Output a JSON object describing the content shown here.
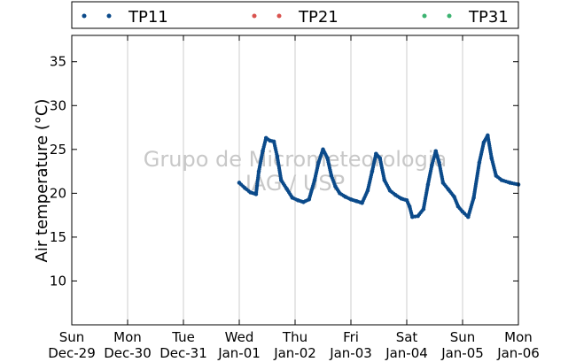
{
  "chart_data": {
    "type": "scatter",
    "title": "",
    "xlabel": "",
    "ylabel": "Air temperature (°C)",
    "ylim": [
      5,
      38
    ],
    "yticks": [
      10,
      15,
      20,
      25,
      30,
      35
    ],
    "x_days": [
      "Dec-29",
      "Dec-30",
      "Dec-31",
      "Jan-01",
      "Jan-02",
      "Jan-03",
      "Jan-04",
      "Jan-05",
      "Jan-06"
    ],
    "x_weekdays": [
      "Sun",
      "Mon",
      "Tue",
      "Wed",
      "Thu",
      "Fri",
      "Sat",
      "Sun",
      "Mon"
    ],
    "grid": "vertical",
    "legend_position": "top",
    "watermark": [
      "Grupo de Micrometeorologia",
      "IAG / USP"
    ],
    "series": [
      {
        "name": "TP11",
        "color": "#0b4a8a",
        "points": [
          [
            "Jan-01",
            0.0,
            21.2
          ],
          [
            "Jan-01",
            0.1,
            20.6
          ],
          [
            "Jan-01",
            0.2,
            20.1
          ],
          [
            "Jan-01",
            0.3,
            19.9
          ],
          [
            "Jan-01",
            0.35,
            22.5
          ],
          [
            "Jan-01",
            0.42,
            24.8
          ],
          [
            "Jan-01",
            0.48,
            26.3
          ],
          [
            "Jan-01",
            0.55,
            26.0
          ],
          [
            "Jan-01",
            0.62,
            25.9
          ],
          [
            "Jan-01",
            0.68,
            24.2
          ],
          [
            "Jan-01",
            0.75,
            21.5
          ],
          [
            "Jan-01",
            0.85,
            20.5
          ],
          [
            "Jan-01",
            0.95,
            19.5
          ],
          [
            "Jan-02",
            0.05,
            19.2
          ],
          [
            "Jan-02",
            0.15,
            19.0
          ],
          [
            "Jan-02",
            0.25,
            19.3
          ],
          [
            "Jan-02",
            0.35,
            21.5
          ],
          [
            "Jan-02",
            0.42,
            23.5
          ],
          [
            "Jan-02",
            0.5,
            25.0
          ],
          [
            "Jan-02",
            0.58,
            24.0
          ],
          [
            "Jan-02",
            0.65,
            22.0
          ],
          [
            "Jan-02",
            0.72,
            20.8
          ],
          [
            "Jan-02",
            0.8,
            20.0
          ],
          [
            "Jan-02",
            0.9,
            19.6
          ],
          [
            "Jan-03",
            0.0,
            19.3
          ],
          [
            "Jan-03",
            0.1,
            19.1
          ],
          [
            "Jan-03",
            0.2,
            18.9
          ],
          [
            "Jan-03",
            0.3,
            20.3
          ],
          [
            "Jan-03",
            0.38,
            22.5
          ],
          [
            "Jan-03",
            0.45,
            24.5
          ],
          [
            "Jan-03",
            0.52,
            24.0
          ],
          [
            "Jan-03",
            0.6,
            21.5
          ],
          [
            "Jan-03",
            0.7,
            20.3
          ],
          [
            "Jan-03",
            0.8,
            19.8
          ],
          [
            "Jan-03",
            0.9,
            19.4
          ],
          [
            "Jan-04",
            0.0,
            19.2
          ],
          [
            "Jan-04",
            0.05,
            18.5
          ],
          [
            "Jan-04",
            0.1,
            17.3
          ],
          [
            "Jan-04",
            0.2,
            17.4
          ],
          [
            "Jan-04",
            0.3,
            18.2
          ],
          [
            "Jan-04",
            0.38,
            21.0
          ],
          [
            "Jan-04",
            0.45,
            23.2
          ],
          [
            "Jan-04",
            0.52,
            24.8
          ],
          [
            "Jan-04",
            0.58,
            23.5
          ],
          [
            "Jan-04",
            0.65,
            21.2
          ],
          [
            "Jan-04",
            0.75,
            20.4
          ],
          [
            "Jan-04",
            0.85,
            19.6
          ],
          [
            "Jan-04",
            0.92,
            18.5
          ],
          [
            "Jan-05",
            0.0,
            17.9
          ],
          [
            "Jan-05",
            0.1,
            17.3
          ],
          [
            "Jan-05",
            0.2,
            19.5
          ],
          [
            "Jan-05",
            0.3,
            23.5
          ],
          [
            "Jan-05",
            0.38,
            25.8
          ],
          [
            "Jan-05",
            0.45,
            26.6
          ],
          [
            "Jan-05",
            0.52,
            24.0
          ],
          [
            "Jan-05",
            0.6,
            22.0
          ],
          [
            "Jan-05",
            0.7,
            21.5
          ],
          [
            "Jan-05",
            0.85,
            21.2
          ],
          [
            "Jan-05",
            1.0,
            21.0
          ]
        ]
      },
      {
        "name": "TP21",
        "color": "#d9534f",
        "points": []
      },
      {
        "name": "TP31",
        "color": "#3cb371",
        "points": []
      }
    ]
  }
}
